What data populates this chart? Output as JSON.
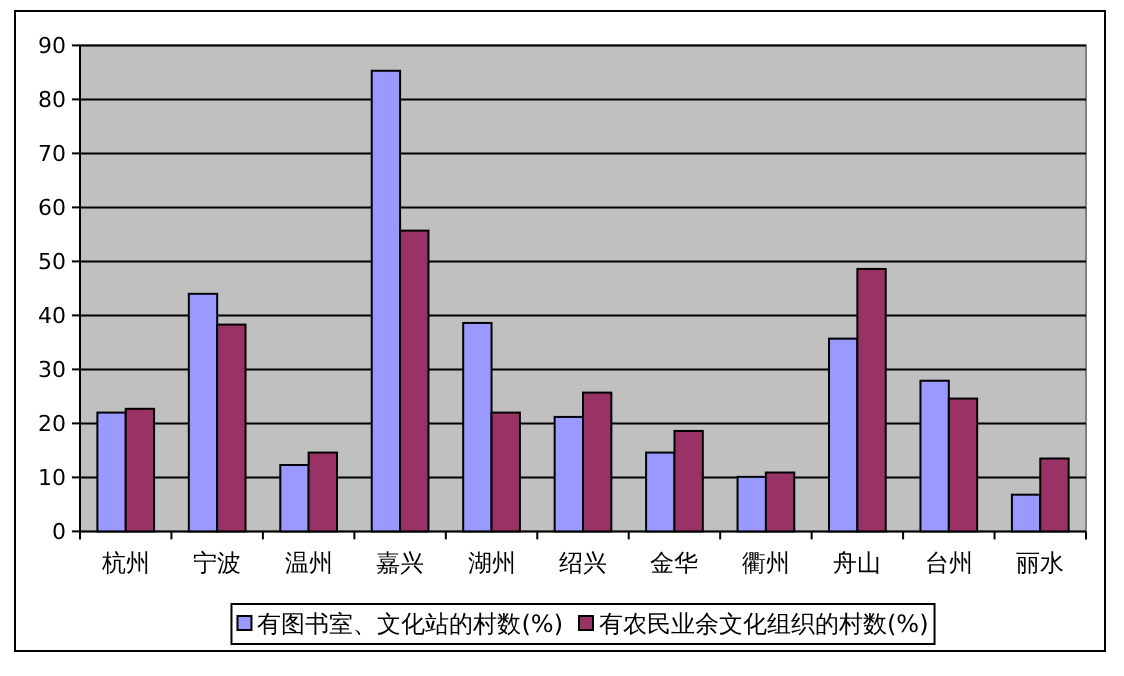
{
  "chart_data": {
    "type": "bar",
    "categories": [
      "杭州",
      "宁波",
      "温州",
      "嘉兴",
      "湖州",
      "绍兴",
      "金华",
      "衢州",
      "舟山",
      "台州",
      "丽水"
    ],
    "series": [
      {
        "name": "有图书室、文化站的村数(%)",
        "color": "#9999ff",
        "values": [
          22,
          44,
          12.3,
          85.3,
          38.6,
          21.2,
          14.6,
          10.1,
          35.7,
          27.9,
          6.8
        ]
      },
      {
        "name": "有农民业余文化组织的村数(%)",
        "color": "#993366",
        "values": [
          22.7,
          38.3,
          14.6,
          55.7,
          22,
          25.7,
          18.6,
          10.9,
          48.6,
          24.6,
          13.5
        ]
      }
    ],
    "ylim": [
      0,
      90
    ],
    "yticks": [
      0,
      10,
      20,
      30,
      40,
      50,
      60,
      70,
      80,
      90
    ],
    "grid": "y",
    "legend": "bottom"
  }
}
